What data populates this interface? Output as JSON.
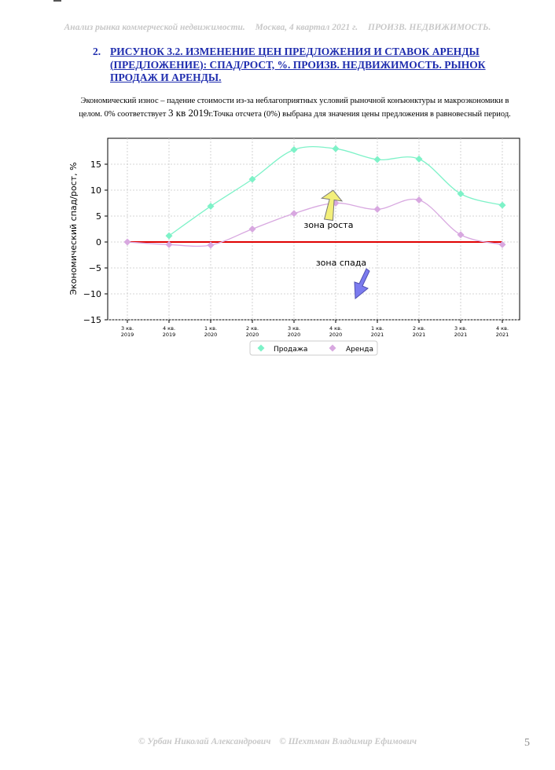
{
  "header": {
    "title": "Анализ рынка коммерческой недвижимости.",
    "location": "Москва, 4 квартал 2021 г.",
    "section": "ПРОИЗВ. НЕДВИЖИМОСТЬ."
  },
  "heading": {
    "number": "2.",
    "text": "РИСУНОК 3.2. ИЗМЕНЕНИЕ ЦЕН ПРЕДЛОЖЕНИЯ И СТАВОК АРЕНДЫ (ПРЕДЛОЖЕНИЕ): СПАД/РОСТ, %. ПРОИЗВ. НЕДВИЖИМОСТЬ. РЫНОК ПРОДАЖ И АРЕНДЫ."
  },
  "description": {
    "part1": "Экономический износ – падение стоимости из-за неблагоприятных условий рыночной конъюнктуры и макроэкономики в целом. 0% соответствует ",
    "part2": "3 кв 2019",
    "part3": "г.Точка отсчета (0%) выбрана для значения цены предложения в равновесный период."
  },
  "chart_data": {
    "type": "line",
    "ylabel": "Экономический спад/рост, %",
    "xlabel": "",
    "ylim": [
      -15,
      20
    ],
    "yticks": [
      -15,
      -10,
      -5,
      0,
      5,
      10,
      15
    ],
    "ytick_labels": [
      "−15",
      "−10",
      "−5",
      "0",
      "5",
      "10",
      "15"
    ],
    "categories": [
      [
        "3 кв.",
        "2019"
      ],
      [
        "4 кв.",
        "2019"
      ],
      [
        "1 кв.",
        "2020"
      ],
      [
        "2 кв.",
        "2020"
      ],
      [
        "3 кв.",
        "2020"
      ],
      [
        "4 кв.",
        "2020"
      ],
      [
        "1 кв.",
        "2021"
      ],
      [
        "2 кв.",
        "2021"
      ],
      [
        "3 кв.",
        "2021"
      ],
      [
        "4 кв.",
        "2021"
      ]
    ],
    "grid": true,
    "legend_position": "bottom-center",
    "series": [
      {
        "name": "Продажа",
        "color": "#7ef2c8",
        "values": [
          null,
          1.2,
          6.9,
          12.1,
          17.8,
          18.0,
          15.9,
          16.0,
          9.3,
          7.1
        ]
      },
      {
        "name": "Аренда",
        "color": "#d8a8e0",
        "values": [
          0,
          -0.5,
          -0.6,
          2.5,
          5.5,
          7.5,
          6.3,
          8.1,
          1.4,
          -0.5
        ]
      }
    ],
    "reference_line": {
      "y": 0,
      "color": "#e00000"
    },
    "annotations": [
      {
        "text": "зона роста",
        "x": 5,
        "y": 3
      },
      {
        "text": "зона спада",
        "x": 5,
        "y": -4
      }
    ]
  },
  "footer": {
    "author1": "© Урбан Николай Александрович",
    "author2": "© Шехтман Владимир Ефимович",
    "page": "5"
  }
}
